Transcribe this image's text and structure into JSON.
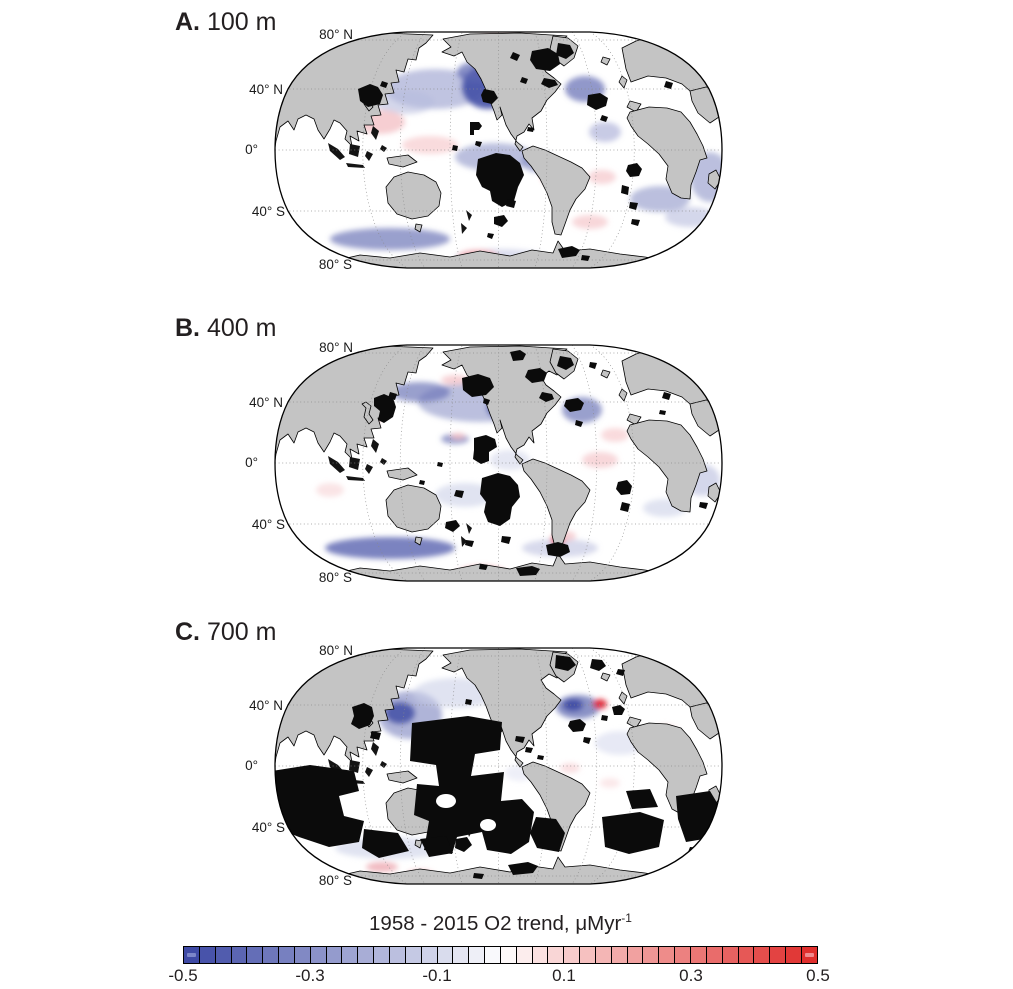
{
  "figure": {
    "panels": [
      {
        "tag": "A.",
        "depth": "100 m"
      },
      {
        "tag": "B.",
        "depth": "400 m"
      },
      {
        "tag": "C.",
        "depth": "700 m"
      }
    ],
    "latitude_labels": [
      "80° N",
      "40° N",
      "0°",
      "40° S",
      "80° S"
    ],
    "colorbar": {
      "title_main": "1958 - 2015 O2 trend, μMyr",
      "title_superscript": "-1",
      "ticks": [
        "-0.5",
        "-0.3",
        "-0.1",
        "0.1",
        "0.3",
        "0.5"
      ],
      "n_cells": 40,
      "negative_color": "#3a46a3",
      "zero_color": "#ffffff",
      "positive_color": "#df2a28"
    },
    "colors": {
      "land": "#c4c4c4",
      "coastline": "#000000",
      "masked_region": "#000000",
      "background": "#ffffff"
    }
  },
  "chart_data": {
    "type": "heatmap",
    "subtype": "global ocean maps, Robinson projection, Pacific-centered",
    "title": "1958 - 2015 O2 trend, μMyr⁻¹",
    "panels": [
      {
        "label": "A.",
        "depth_m": 100
      },
      {
        "label": "B.",
        "depth_m": 400
      },
      {
        "label": "C.",
        "depth_m": 700
      }
    ],
    "colorbar": {
      "min": -0.5,
      "max": 0.5,
      "tick_values": [
        -0.5,
        -0.3,
        -0.1,
        0.1,
        0.3,
        0.5
      ],
      "units": "μM yr⁻¹",
      "diverging": true,
      "negative_meaning": "oxygen decline (blue)",
      "positive_meaning": "oxygen increase (red)"
    },
    "latitude_gridlines_deg": [
      80,
      40,
      0,
      -40,
      -80
    ],
    "notes": "Blue shading shows negative O2 trends (strongest in North Pacific and North Atlantic), red/pink positive trends; gray is land; black areas are masked regions whose extent grows with depth (largest at 700 m in South Pacific, Indian and South Atlantic oceans)."
  }
}
